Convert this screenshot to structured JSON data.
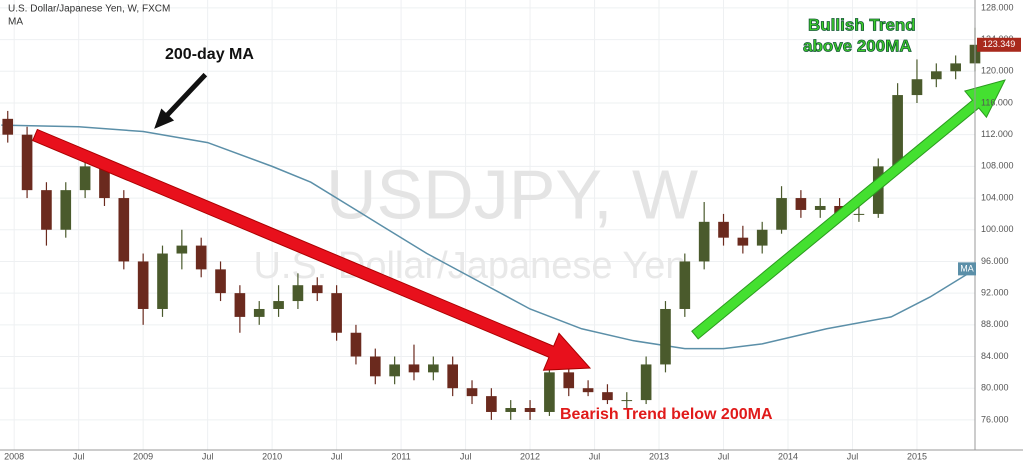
{
  "chart_data": {
    "type": "candlestick",
    "title": "U.S. Dollar/Japanese Yen, W, FXCM",
    "watermark": "USDJPY, W",
    "watermark_subtitle": "U.S. Dollar/Japanese Yen",
    "x": [
      2007.95,
      2008.1,
      2008.25,
      2008.4,
      2008.55,
      2008.7,
      2008.85,
      2009.0,
      2009.15,
      2009.3,
      2009.45,
      2009.6,
      2009.75,
      2009.9,
      2010.05,
      2010.2,
      2010.35,
      2010.5,
      2010.65,
      2010.8,
      2010.95,
      2011.1,
      2011.25,
      2011.4,
      2011.55,
      2011.7,
      2011.85,
      2012.0,
      2012.15,
      2012.3,
      2012.45,
      2012.6,
      2012.75,
      2012.9,
      2013.05,
      2013.2,
      2013.35,
      2013.5,
      2013.65,
      2013.8,
      2013.95,
      2014.1,
      2014.25,
      2014.4,
      2014.55,
      2014.7,
      2014.85,
      2015.0,
      2015.15,
      2015.3,
      2015.45
    ],
    "open": [
      114,
      112,
      105,
      100,
      105,
      108,
      104,
      96,
      90,
      97,
      98,
      95,
      92,
      89,
      90,
      91,
      93,
      92,
      87,
      84,
      81.5,
      83,
      82,
      83,
      80,
      79,
      77,
      77.5,
      77,
      82,
      80,
      79.5,
      78.5,
      78.5,
      83,
      90,
      96,
      101,
      99,
      98,
      100,
      104,
      102.5,
      103,
      102,
      102,
      108,
      117,
      119,
      120,
      121
    ],
    "high": [
      115,
      113,
      106,
      106,
      110,
      109,
      105,
      97,
      98,
      100,
      99,
      96,
      93,
      91,
      93,
      94.5,
      94,
      93,
      88,
      85,
      84,
      85.5,
      84,
      84,
      81,
      80,
      78.5,
      78.5,
      84,
      83,
      81,
      80.5,
      79.5,
      84,
      91,
      97,
      103.5,
      102,
      100.5,
      101,
      105.5,
      105,
      104,
      104,
      103,
      109,
      118.5,
      121.5,
      121,
      122,
      125.5
    ],
    "low": [
      111,
      104,
      98,
      99,
      104,
      103,
      95,
      88,
      89,
      95,
      94,
      91,
      87,
      88,
      89,
      90,
      91,
      86,
      83,
      80.5,
      80.5,
      81,
      81,
      79,
      78,
      76,
      76,
      76,
      76.5,
      79,
      79,
      78,
      77.5,
      78,
      82,
      89,
      95,
      98,
      97,
      97,
      99.5,
      101.5,
      101.5,
      101,
      101,
      101.5,
      107,
      116,
      118,
      119,
      120
    ],
    "close": [
      112,
      105,
      100,
      105,
      108,
      104,
      96,
      90,
      97,
      98,
      95,
      92,
      89,
      90,
      91,
      93,
      92,
      87,
      84,
      81.5,
      83,
      82,
      83,
      80,
      79,
      77,
      77.5,
      77,
      82,
      80,
      79.5,
      78.5,
      78.5,
      83,
      90,
      96,
      101,
      99,
      98,
      100,
      104,
      102.5,
      103,
      102,
      102,
      108,
      117,
      119,
      120,
      121,
      123.349
    ],
    "up_color": "#4a5a2c",
    "down_color": "#6b2a1e",
    "ma": {
      "name": "MA",
      "color": "#5b8fa8",
      "x": [
        2007.9,
        2008.5,
        2009.0,
        2009.5,
        2010.0,
        2010.3,
        2010.7,
        2011.2,
        2011.6,
        2012.0,
        2012.4,
        2012.8,
        2013.2,
        2013.5,
        2013.8,
        2014.3,
        2014.8,
        2015.1,
        2015.45
      ],
      "values": [
        113.2,
        113,
        112.4,
        111,
        108,
        106,
        102,
        97,
        93.5,
        90,
        87.5,
        86,
        85,
        85,
        85.6,
        87.5,
        89,
        91.5,
        95
      ]
    },
    "last_price": 123.349,
    "xlim": [
      2007.89,
      2015.45
    ],
    "xticks": [
      {
        "value": 2008,
        "label": "2008"
      },
      {
        "value": 2008.5,
        "label": "Jul"
      },
      {
        "value": 2009,
        "label": "2009"
      },
      {
        "value": 2009.5,
        "label": "Jul"
      },
      {
        "value": 2010,
        "label": "2010"
      },
      {
        "value": 2010.5,
        "label": "Jul"
      },
      {
        "value": 2011,
        "label": "2011"
      },
      {
        "value": 2011.5,
        "label": "Jul"
      },
      {
        "value": 2012,
        "label": "2012"
      },
      {
        "value": 2012.5,
        "label": "Jul"
      },
      {
        "value": 2013,
        "label": "2013"
      },
      {
        "value": 2013.5,
        "label": "Jul"
      },
      {
        "value": 2014,
        "label": "2014"
      },
      {
        "value": 2014.5,
        "label": "Jul"
      },
      {
        "value": 2015,
        "label": "2015"
      }
    ],
    "ylim": [
      72.2,
      129
    ],
    "yticks": [
      {
        "value": 76,
        "label": "76.000"
      },
      {
        "value": 80,
        "label": "80.000"
      },
      {
        "value": 84,
        "label": "84.000"
      },
      {
        "value": 88,
        "label": "88.000"
      },
      {
        "value": 92,
        "label": "92.000"
      },
      {
        "value": 96,
        "label": "96.000"
      },
      {
        "value": 100,
        "label": "100.000"
      },
      {
        "value": 104,
        "label": "104.000"
      },
      {
        "value": 108,
        "label": "108.000"
      },
      {
        "value": 112,
        "label": "112.000"
      },
      {
        "value": 116,
        "label": "116.000"
      },
      {
        "value": 120,
        "label": "120.000"
      },
      {
        "value": 124,
        "label": "124.000"
      },
      {
        "value": 128,
        "label": "128.000"
      }
    ],
    "grid": true,
    "annotations": [
      "200-day MA",
      "Bullish Trend",
      "above 200MA",
      "Bearish Trend below 200MA"
    ]
  }
}
